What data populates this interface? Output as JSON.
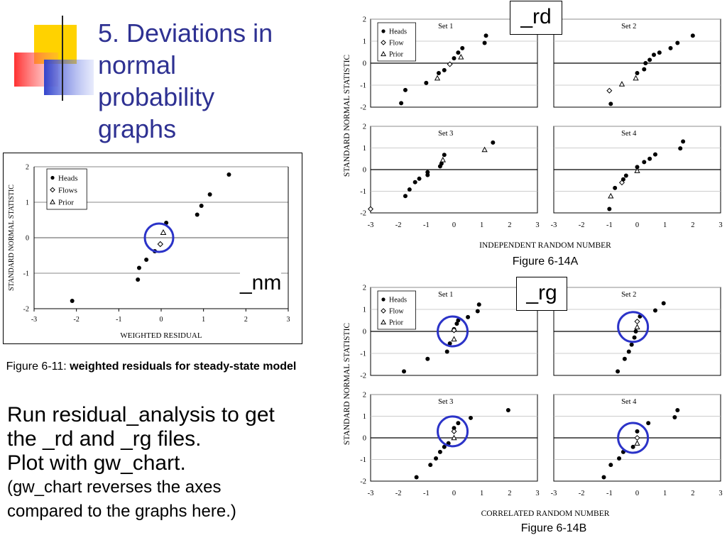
{
  "slide": {
    "title_lines": [
      "5. Deviations in",
      "normal",
      "probability",
      "graphs"
    ],
    "body_lines": [
      "Run residual_analysis to get",
      "the _rd and _rg files.",
      "Plot with gw_chart."
    ],
    "note_lines": [
      "(gw_chart reverses the axes",
      "compared to the graphs here.)"
    ],
    "accent_colors": {
      "title": "#2E3192",
      "yellow": "#FFD200",
      "red": "#FF3B3B",
      "blue": "#3344CC",
      "circle": "#2B33C8"
    }
  },
  "captions": {
    "fig611_prefix": "Figure 6-11: ",
    "fig611_bold": "weighted residuals for steady-state model",
    "fig14a": "Figure 6-14A",
    "fig14b": "Figure 6-14B"
  },
  "tags": {
    "rd": "_rd",
    "rg": "_rg",
    "nm": "_nm"
  },
  "chart_data": [
    {
      "id": "fig611",
      "type": "scatter",
      "title": "",
      "xlabel": "WEIGHTED RESIDUAL",
      "ylabel": "STANDARD NORMAL STATISTIC",
      "xlim": [
        -3,
        3
      ],
      "ylim": [
        -2,
        2
      ],
      "xticks": [
        "-3",
        "-2",
        "-1",
        "0",
        "1",
        "2",
        "3"
      ],
      "yticks": [
        "2",
        "1",
        "0",
        "-1",
        "-2"
      ],
      "grid": true,
      "legend": [
        "Heads",
        "Flows",
        "Prior"
      ],
      "legend_position": "top-left",
      "highlight_circle": {
        "x": -0.05,
        "y": 0.0
      },
      "series": [
        {
          "name": "Heads",
          "marker": "dot",
          "points": [
            [
              -2.1,
              -1.78
            ],
            [
              -0.55,
              -1.18
            ],
            [
              -0.52,
              -0.85
            ],
            [
              -0.35,
              -0.62
            ],
            [
              -0.15,
              -0.38
            ],
            [
              0.12,
              0.42
            ],
            [
              0.85,
              0.65
            ],
            [
              0.95,
              0.9
            ],
            [
              1.15,
              1.22
            ],
            [
              1.6,
              1.78
            ]
          ]
        },
        {
          "name": "Flows",
          "marker": "diamond",
          "points": [
            [
              -0.02,
              -0.18
            ]
          ]
        },
        {
          "name": "Prior",
          "marker": "triangle",
          "points": [
            [
              0.05,
              0.15
            ]
          ]
        }
      ]
    },
    {
      "id": "fig14a",
      "type": "scatter",
      "xlabel": "INDEPENDENT RANDOM NUMBER",
      "ylabel": "STANDARD NORMAL STATISTIC",
      "xlim": [
        -3,
        3
      ],
      "ylim": [
        -2,
        2
      ],
      "xticks": [
        "-3",
        "-2",
        "-1",
        "0",
        "1",
        "2",
        "3"
      ],
      "yticks": [
        "2",
        "1",
        "0",
        "-1",
        "-2"
      ],
      "legend": [
        "Heads",
        "Flow",
        "Prior"
      ],
      "legend_position": "top-left",
      "panels": [
        {
          "set": "Set 1",
          "heads": [
            [
              -1.9,
              -1.82
            ],
            [
              -1.75,
              -1.22
            ],
            [
              -1.0,
              -0.9
            ],
            [
              -0.55,
              -0.45
            ],
            [
              -0.35,
              -0.32
            ],
            [
              0.0,
              0.22
            ],
            [
              0.15,
              0.48
            ],
            [
              0.3,
              0.68
            ],
            [
              1.1,
              0.92
            ],
            [
              1.15,
              1.25
            ]
          ],
          "flow": [
            [
              -0.15,
              -0.05
            ]
          ],
          "prior": [
            [
              -0.6,
              -0.68
            ],
            [
              0.25,
              0.28
            ]
          ]
        },
        {
          "set": "Set 2",
          "heads": [
            [
              -0.95,
              -1.85
            ],
            [
              0.0,
              -0.45
            ],
            [
              0.25,
              -0.28
            ],
            [
              0.3,
              0.0
            ],
            [
              0.45,
              0.15
            ],
            [
              0.6,
              0.38
            ],
            [
              0.8,
              0.48
            ],
            [
              1.2,
              0.68
            ],
            [
              1.45,
              0.92
            ],
            [
              2.0,
              1.25
            ]
          ],
          "flow": [
            [
              -1.0,
              -1.25
            ]
          ],
          "prior": [
            [
              -0.55,
              -0.95
            ],
            [
              -0.05,
              -0.68
            ]
          ]
        },
        {
          "set": "Set 3",
          "heads": [
            [
              -1.75,
              -1.22
            ],
            [
              -1.6,
              -0.92
            ],
            [
              -1.4,
              -0.58
            ],
            [
              -1.25,
              -0.42
            ],
            [
              -0.95,
              -0.12
            ],
            [
              -0.95,
              -0.25
            ],
            [
              -0.5,
              0.15
            ],
            [
              -0.45,
              0.28
            ],
            [
              -0.35,
              0.68
            ],
            [
              1.4,
              1.25
            ]
          ],
          "flow": [
            [
              -3.0,
              -1.82
            ]
          ],
          "prior": [
            [
              -0.4,
              0.45
            ],
            [
              1.1,
              0.92
            ]
          ]
        },
        {
          "set": "Set 4",
          "heads": [
            [
              -1.0,
              -1.82
            ],
            [
              -0.8,
              -0.85
            ],
            [
              -0.5,
              -0.45
            ],
            [
              -0.4,
              -0.28
            ],
            [
              0.0,
              0.12
            ],
            [
              0.25,
              0.35
            ],
            [
              0.45,
              0.5
            ],
            [
              0.65,
              0.7
            ],
            [
              1.55,
              0.98
            ],
            [
              1.65,
              1.3
            ]
          ],
          "flow": [
            [
              -0.55,
              -0.6
            ]
          ],
          "prior": [
            [
              -0.95,
              -1.22
            ],
            [
              0.0,
              -0.05
            ]
          ]
        }
      ]
    },
    {
      "id": "fig14b",
      "type": "scatter",
      "xlabel": "CORRELATED RANDOM NUMBER",
      "ylabel": "STANDARD NORMAL STATISTIC",
      "xlim": [
        -3,
        3
      ],
      "ylim": [
        -2,
        2
      ],
      "xticks": [
        "-3",
        "-2",
        "-1",
        "0",
        "1",
        "2",
        "3"
      ],
      "yticks": [
        "2",
        "1",
        "0",
        "-1",
        "-2"
      ],
      "legend": [
        "Heads",
        "Flow",
        "Prior"
      ],
      "legend_position": "top-left",
      "panels": [
        {
          "set": "Set 1",
          "circle": [
            -0.05,
            0.0
          ],
          "heads": [
            [
              -1.8,
              -1.82
            ],
            [
              -0.95,
              -1.25
            ],
            [
              -0.25,
              -0.92
            ],
            [
              -0.15,
              -0.55
            ],
            [
              0.0,
              0.1
            ],
            [
              0.1,
              0.35
            ],
            [
              0.15,
              0.5
            ],
            [
              0.5,
              0.65
            ],
            [
              0.85,
              0.92
            ],
            [
              0.9,
              1.22
            ]
          ],
          "flow": [
            [
              0.0,
              0.05
            ]
          ],
          "prior": [
            [
              0.0,
              -0.35
            ]
          ]
        },
        {
          "set": "Set 2",
          "circle": [
            -0.15,
            0.2
          ],
          "heads": [
            [
              -0.7,
              -1.82
            ],
            [
              -0.45,
              -1.25
            ],
            [
              -0.3,
              -0.92
            ],
            [
              -0.2,
              -0.6
            ],
            [
              -0.1,
              -0.28
            ],
            [
              -0.05,
              0.0
            ],
            [
              0.1,
              0.68
            ],
            [
              0.65,
              0.95
            ],
            [
              0.95,
              1.28
            ]
          ],
          "flow": [
            [
              0.0,
              0.45
            ]
          ],
          "prior": [
            [
              0.0,
              0.2
            ]
          ]
        },
        {
          "set": "Set 3",
          "circle": [
            -0.05,
            0.3
          ],
          "heads": [
            [
              -1.35,
              -1.82
            ],
            [
              -0.85,
              -1.25
            ],
            [
              -0.65,
              -0.95
            ],
            [
              -0.5,
              -0.65
            ],
            [
              -0.35,
              -0.42
            ],
            [
              -0.2,
              -0.25
            ],
            [
              0.0,
              0.45
            ],
            [
              0.15,
              0.68
            ],
            [
              0.6,
              0.92
            ],
            [
              1.95,
              1.28
            ]
          ],
          "flow": [
            [
              0.0,
              0.3
            ]
          ],
          "prior": [
            [
              0.0,
              0.0
            ]
          ]
        },
        {
          "set": "Set 4",
          "circle": [
            -0.15,
            0.0
          ],
          "heads": [
            [
              -1.2,
              -1.82
            ],
            [
              -0.95,
              -1.25
            ],
            [
              -0.65,
              -0.95
            ],
            [
              -0.5,
              -0.65
            ],
            [
              -0.15,
              -0.42
            ],
            [
              0.0,
              0.3
            ],
            [
              0.4,
              0.68
            ],
            [
              1.35,
              0.95
            ],
            [
              1.45,
              1.28
            ]
          ],
          "flow": [
            [
              0.0,
              0.0
            ]
          ],
          "prior": [
            [
              0.0,
              -0.25
            ]
          ]
        }
      ]
    }
  ]
}
